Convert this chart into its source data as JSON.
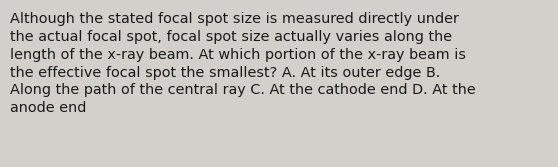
{
  "lines": [
    "Although the stated focal spot size is measured directly under",
    "the actual focal spot, focal spot size actually varies along the",
    "length of the x-ray beam. At which portion of the x-ray beam is",
    "the effective focal spot the smallest? A. At its outer edge B.",
    "Along the path of the central ray C. At the cathode end D. At the",
    "anode end"
  ],
  "bg_color": "#d3d0cb",
  "text_color": "#1a1a1a",
  "font_size": 10.4,
  "fig_width": 5.58,
  "fig_height": 1.67
}
